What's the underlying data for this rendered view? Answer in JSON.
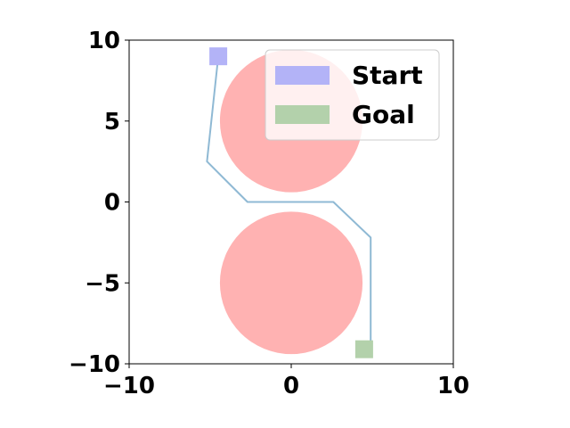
{
  "chart_data": {
    "type": "scatter",
    "title": "",
    "xlabel": "",
    "ylabel": "",
    "xlim": [
      -10,
      10
    ],
    "ylim": [
      -10,
      10
    ],
    "grid": false,
    "legend_position": "top-right",
    "x_ticks": [
      -10,
      0,
      10
    ],
    "x_tick_labels": [
      "−10",
      "0",
      "10"
    ],
    "y_ticks": [
      -10,
      -5,
      0,
      5,
      10
    ],
    "y_tick_labels": [
      "−10",
      "−5",
      "0",
      "5",
      "10"
    ],
    "obstacles": [
      {
        "center": [
          0,
          5
        ],
        "radius": 4.4,
        "color": "#ffb2b2"
      },
      {
        "center": [
          0,
          -5
        ],
        "radius": 4.4,
        "color": "#ffb2b2"
      }
    ],
    "path": {
      "color": "#8fb9d4",
      "points": [
        [
          -4.5,
          9
        ],
        [
          -5.2,
          2.5
        ],
        [
          -2.7,
          0
        ],
        [
          2.6,
          0
        ],
        [
          4.9,
          -2.2
        ],
        [
          4.9,
          -9.1
        ]
      ]
    },
    "markers": [
      {
        "name": "Start",
        "position": [
          -4.5,
          9
        ],
        "color": "#b3b3f7"
      },
      {
        "name": "Goal",
        "position": [
          4.5,
          -9.1
        ],
        "color": "#b3d1ab"
      }
    ],
    "legend": [
      {
        "label": "Start",
        "color": "#b3b3f7"
      },
      {
        "label": "Goal",
        "color": "#b3d1ab"
      }
    ]
  }
}
